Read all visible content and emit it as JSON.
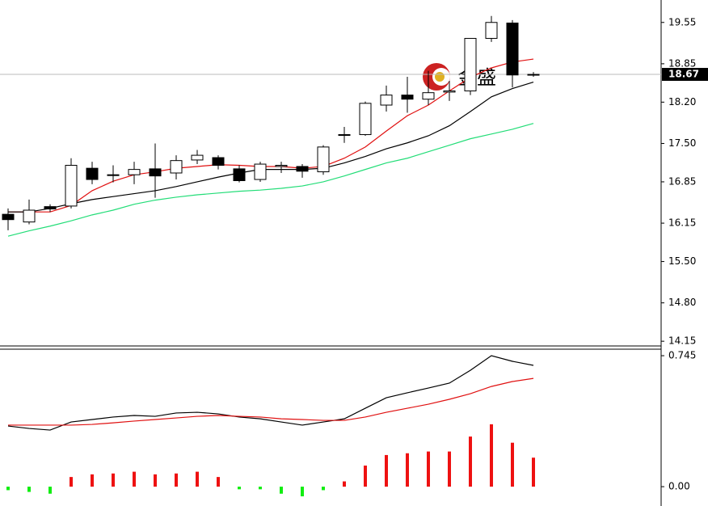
{
  "chart_data": [
    {
      "type": "candlestick",
      "open": [
        16.3,
        16.17,
        16.43,
        16.44,
        17.08,
        16.97,
        16.97,
        17.07,
        17.0,
        17.22,
        17.26,
        17.07,
        16.89,
        17.11,
        17.11,
        17.02,
        17.65,
        17.65,
        18.15,
        18.32,
        18.25,
        18.37,
        18.39,
        19.28,
        19.54,
        18.66
      ],
      "high": [
        16.4,
        16.55,
        16.47,
        17.25,
        17.19,
        17.13,
        17.19,
        17.5,
        17.3,
        17.39,
        17.3,
        17.13,
        17.19,
        17.19,
        17.15,
        17.47,
        17.78,
        18.21,
        18.48,
        18.63,
        18.73,
        18.56,
        19.28,
        19.66,
        19.59,
        18.71
      ],
      "low": [
        16.03,
        16.13,
        16.34,
        16.4,
        16.81,
        16.84,
        16.81,
        16.58,
        16.89,
        17.15,
        17.06,
        16.84,
        16.85,
        17.0,
        16.92,
        16.97,
        17.51,
        17.63,
        18.04,
        18.02,
        18.15,
        18.22,
        18.32,
        19.22,
        18.45,
        18.63
      ],
      "close": [
        16.21,
        16.37,
        16.39,
        17.13,
        16.89,
        16.96,
        17.06,
        16.95,
        17.21,
        17.3,
        17.13,
        16.87,
        17.15,
        17.13,
        17.03,
        17.44,
        17.64,
        18.18,
        18.32,
        18.25,
        18.36,
        18.39,
        19.28,
        19.55,
        18.66,
        18.67
      ],
      "up_color": "#ffffff",
      "down_color": "#000000",
      "series": [
        {
          "color": "#e01010",
          "values": [
            16.34,
            16.34,
            16.34,
            16.45,
            16.7,
            16.86,
            16.97,
            17.02,
            17.08,
            17.11,
            17.14,
            17.13,
            17.11,
            17.11,
            17.08,
            17.11,
            17.25,
            17.44,
            17.71,
            17.97,
            18.15,
            18.39,
            18.62,
            18.78,
            18.88,
            18.93
          ]
        },
        {
          "color": "#000000",
          "values": [
            16.34,
            16.34,
            16.4,
            16.48,
            16.55,
            16.6,
            16.65,
            16.7,
            16.77,
            16.85,
            16.93,
            17.0,
            17.06,
            17.06,
            17.06,
            17.08,
            17.17,
            17.28,
            17.41,
            17.51,
            17.63,
            17.8,
            18.04,
            18.29,
            18.43,
            18.54
          ]
        },
        {
          "color": "#22dd77",
          "values": [
            15.93,
            16.02,
            16.1,
            16.19,
            16.29,
            16.37,
            16.47,
            16.54,
            16.59,
            16.63,
            16.66,
            16.69,
            16.71,
            16.74,
            16.78,
            16.85,
            16.95,
            17.06,
            17.17,
            17.25,
            17.36,
            17.47,
            17.58,
            17.66,
            17.74,
            17.84
          ]
        }
      ],
      "price_line": 18.67,
      "watermark": "金盛",
      "ylim": [
        14.07,
        19.93
      ],
      "yticks": [
        19.55,
        18.85,
        {
          "value": 18.2,
          "label": "18.20"
        },
        {
          "value": 17.5,
          "label": "17.50"
        },
        16.85,
        16.15,
        {
          "value": 15.5,
          "label": "15.50"
        },
        {
          "value": 14.8,
          "label": "14.80"
        },
        14.15
      ]
    },
    {
      "type": "macd",
      "histogram": [
        -0.02,
        -0.03,
        -0.04,
        0.055,
        0.07,
        0.075,
        0.085,
        0.07,
        0.075,
        0.085,
        0.055,
        -0.015,
        -0.015,
        -0.04,
        -0.055,
        -0.02,
        0.03,
        0.12,
        0.18,
        0.19,
        0.2,
        0.2,
        0.285,
        0.355,
        0.25,
        0.165
      ],
      "positive_color": "#ee1111",
      "negative_color": "#11ee11",
      "series": [
        {
          "color": "#000000",
          "values": [
            0.345,
            0.331,
            0.322,
            0.368,
            0.382,
            0.396,
            0.405,
            0.4,
            0.419,
            0.423,
            0.414,
            0.396,
            0.386,
            0.368,
            0.35,
            0.368,
            0.386,
            0.446,
            0.506,
            0.534,
            0.561,
            0.589,
            0.662,
            0.745,
            0.713,
            0.69
          ]
        },
        {
          "color": "#e01010",
          "values": [
            0.35,
            0.35,
            0.35,
            0.35,
            0.354,
            0.363,
            0.373,
            0.382,
            0.391,
            0.4,
            0.405,
            0.4,
            0.396,
            0.386,
            0.382,
            0.377,
            0.377,
            0.396,
            0.423,
            0.446,
            0.469,
            0.497,
            0.529,
            0.57,
            0.598,
            0.616
          ]
        }
      ],
      "ylim": [
        -0.11,
        0.782
      ],
      "yticks": [
        0.745,
        {
          "value": 0,
          "label": "0.00"
        }
      ]
    }
  ]
}
